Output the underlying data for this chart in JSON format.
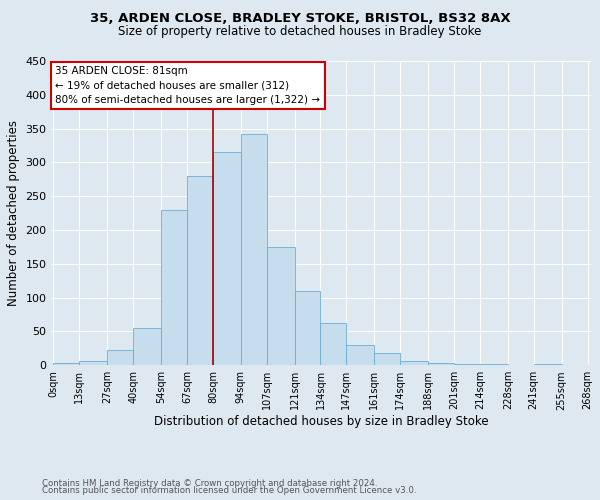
{
  "title_line1": "35, ARDEN CLOSE, BRADLEY STOKE, BRISTOL, BS32 8AX",
  "title_line2": "Size of property relative to detached houses in Bradley Stoke",
  "xlabel": "Distribution of detached houses by size in Bradley Stoke",
  "ylabel": "Number of detached properties",
  "footnote_line1": "Contains HM Land Registry data © Crown copyright and database right 2024.",
  "footnote_line2": "Contains public sector information licensed under the Open Government Licence v3.0.",
  "bin_labels": [
    "0sqm",
    "13sqm",
    "27sqm",
    "40sqm",
    "54sqm",
    "67sqm",
    "80sqm",
    "94sqm",
    "107sqm",
    "121sqm",
    "134sqm",
    "147sqm",
    "161sqm",
    "174sqm",
    "188sqm",
    "201sqm",
    "214sqm",
    "228sqm",
    "241sqm",
    "255sqm",
    "268sqm"
  ],
  "bar_values": [
    3,
    6,
    22,
    55,
    230,
    280,
    316,
    342,
    175,
    109,
    62,
    30,
    18,
    6,
    3,
    1,
    1,
    0,
    2,
    0
  ],
  "bar_color": "#c5dded",
  "bar_edge_color": "#6baed6",
  "vline_x": 80,
  "vline_color": "#aa0000",
  "ylim": [
    0,
    450
  ],
  "yticks": [
    0,
    50,
    100,
    150,
    200,
    250,
    300,
    350,
    400,
    450
  ],
  "annotation_text_line1": "35 ARDEN CLOSE: 81sqm",
  "annotation_text_line2": "← 19% of detached houses are smaller (312)",
  "annotation_text_line3": "80% of semi-detached houses are larger (1,322) →",
  "annotation_box_color": "#ffffff",
  "annotation_border_color": "#cc0000",
  "bg_color": "#dde8f0",
  "grid_color": "#ffffff"
}
